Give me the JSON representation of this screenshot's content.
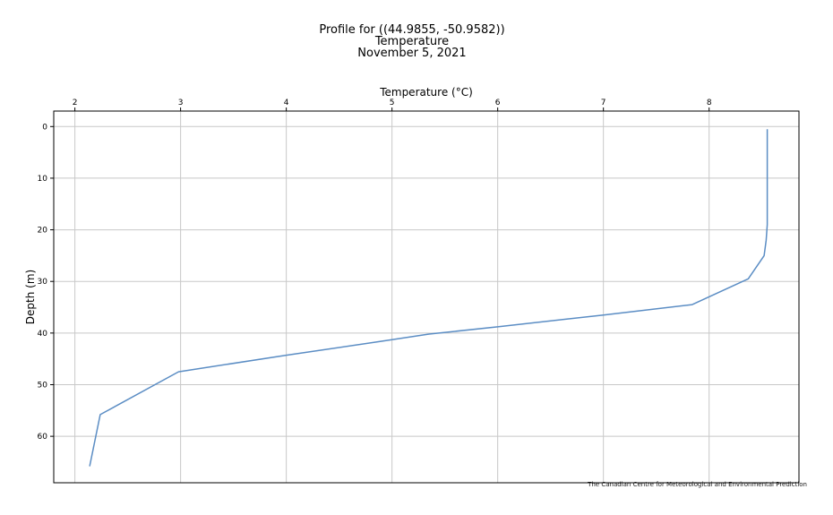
{
  "chart_data": {
    "type": "line",
    "title_lines": [
      "Profile for ((44.9855, -50.9582))",
      "Temperature",
      "November 5, 2021"
    ],
    "xlabel": "Temperature (°C)",
    "ylabel": "Depth (m)",
    "x_axis_position": "top",
    "y_inverted": true,
    "xlim": [
      1.8,
      8.85
    ],
    "ylim": [
      69,
      -3
    ],
    "x_ticks": [
      2,
      3,
      4,
      5,
      6,
      7,
      8
    ],
    "y_ticks": [
      0,
      10,
      20,
      30,
      40,
      50,
      60
    ],
    "grid": true,
    "series": [
      {
        "color": "#5b8dc4",
        "points": [
          {
            "temp": 8.55,
            "depth": 0.5
          },
          {
            "temp": 8.55,
            "depth": 5
          },
          {
            "temp": 8.55,
            "depth": 10
          },
          {
            "temp": 8.55,
            "depth": 15
          },
          {
            "temp": 8.55,
            "depth": 19
          },
          {
            "temp": 8.54,
            "depth": 22
          },
          {
            "temp": 8.52,
            "depth": 25
          },
          {
            "temp": 8.37,
            "depth": 29.5
          },
          {
            "temp": 7.84,
            "depth": 34.5
          },
          {
            "temp": 7.0,
            "depth": 36.5
          },
          {
            "temp": 6.0,
            "depth": 38.8
          },
          {
            "temp": 5.35,
            "depth": 40.2
          },
          {
            "temp": 5.0,
            "depth": 41.3
          },
          {
            "temp": 4.0,
            "depth": 44.3
          },
          {
            "temp": 2.98,
            "depth": 47.5
          },
          {
            "temp": 2.24,
            "depth": 55.8
          },
          {
            "temp": 2.14,
            "depth": 65.8
          }
        ]
      }
    ]
  },
  "credit": "The Canadian Centre for Meteorological and Environmental Prediction"
}
